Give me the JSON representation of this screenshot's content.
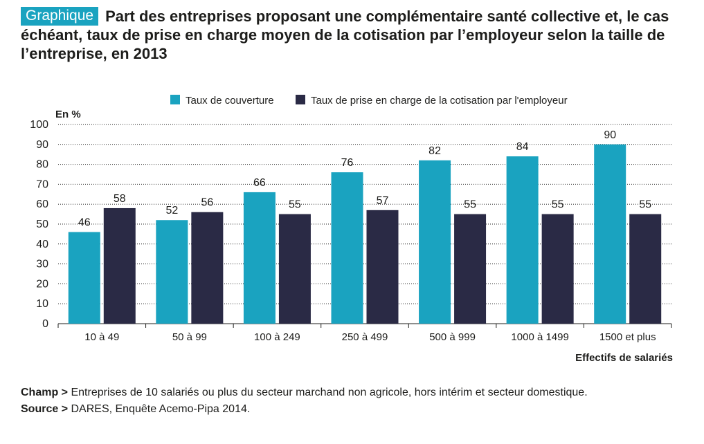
{
  "header": {
    "tag": "Graphique",
    "title": "Part des entreprises proposant une complémentaire santé collective et, le cas échéant, taux de prise en charge moyen de la cotisation par l’employeur selon la taille de l’entreprise, en 2013"
  },
  "chart_data": {
    "type": "bar",
    "title": "Part des entreprises proposant une complémentaire santé collective et, le cas échéant, taux de prise en charge moyen de la cotisation par l’employeur selon la taille de l’entreprise, en 2013",
    "ylabel": "En %",
    "xlabel": "Effectifs de salariés",
    "ylim": [
      0,
      100
    ],
    "yticks": [
      0,
      10,
      20,
      30,
      40,
      50,
      60,
      70,
      80,
      90,
      100
    ],
    "grid": true,
    "legend_position": "top",
    "categories": [
      "10 à 49",
      "50 à 99",
      "100 à 249",
      "250 à 499",
      "500 à 999",
      "1000 à 1499",
      "1500 et plus"
    ],
    "series": [
      {
        "name": "Taux de couverture",
        "color": "#1aa3c0",
        "values": [
          46,
          52,
          66,
          76,
          82,
          84,
          90
        ]
      },
      {
        "name": "Taux de prise en charge de la cotisation par l'employeur",
        "color": "#2a2a45",
        "values": [
          58,
          56,
          55,
          57,
          55,
          55,
          55
        ]
      }
    ]
  },
  "footnotes": {
    "champ_label": "Champ >",
    "champ_text": "Entreprises de 10 salariés ou plus du secteur marchand non agricole, hors intérim et secteur domestique.",
    "source_label": "Source >",
    "source_text": "DARES, Enquête Acemo-Pipa 2014."
  }
}
